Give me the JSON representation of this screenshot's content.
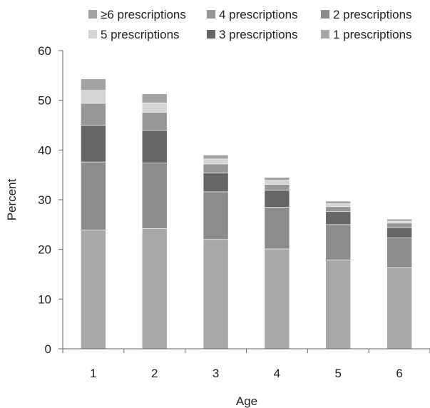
{
  "chart_data": {
    "type": "bar",
    "stacked": true,
    "categories": [
      "1",
      "2",
      "3",
      "4",
      "5",
      "6"
    ],
    "xlabel": "Age",
    "ylabel": "Percent",
    "ylim": [
      0,
      60
    ],
    "yticks": [
      0,
      10,
      20,
      30,
      40,
      50,
      60
    ],
    "grid": false,
    "legend_position": "top",
    "series": [
      {
        "name": "1 prescriptions",
        "color": "#a8a8a8",
        "values": [
          23.9,
          24.2,
          22.0,
          20.1,
          17.9,
          16.3
        ]
      },
      {
        "name": "2 prescriptions",
        "color": "#8c8c8c",
        "values": [
          13.7,
          13.2,
          9.6,
          8.4,
          7.1,
          6.0
        ]
      },
      {
        "name": "3 prescriptions",
        "color": "#666666",
        "values": [
          7.4,
          6.6,
          3.8,
          3.4,
          2.6,
          2.1
        ]
      },
      {
        "name": "4 prescriptions",
        "color": "#979797",
        "values": [
          4.4,
          3.6,
          1.8,
          1.2,
          1.0,
          0.9
        ]
      },
      {
        "name": "5 prescriptions",
        "color": "#d4d4d4",
        "values": [
          2.6,
          1.9,
          1.0,
          0.8,
          0.6,
          0.4
        ]
      },
      {
        "name": "≥6 prescriptions",
        "color": "#a3a3a3",
        "values": [
          2.3,
          1.8,
          0.8,
          0.6,
          0.5,
          0.4
        ]
      }
    ],
    "legend_order": [
      "≥6 prescriptions",
      "4 prescriptions",
      "2 prescriptions",
      "5 prescriptions",
      "3 prescriptions",
      "1 prescriptions"
    ]
  }
}
